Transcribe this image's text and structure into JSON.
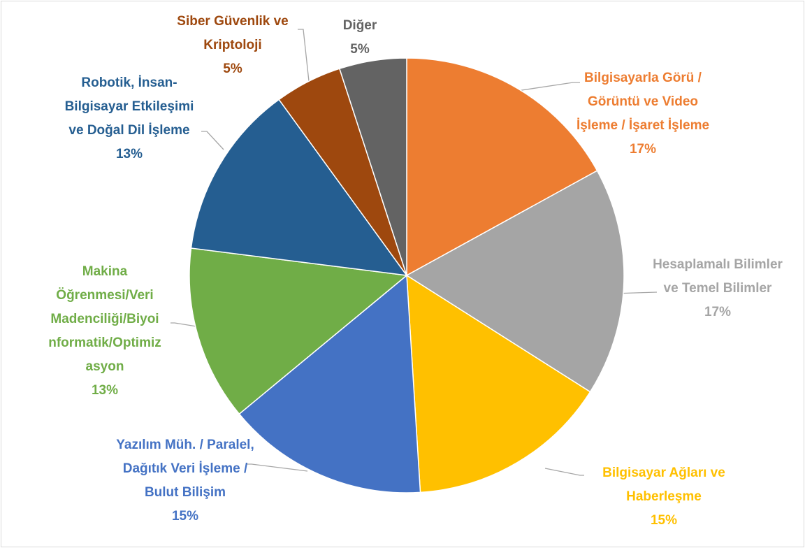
{
  "chart_data": {
    "type": "pie",
    "categories": [
      "Bilgisayarla Görü / Görüntü ve Video İşleme / İşaret İşleme",
      "Hesaplamalı Bilimler ve Temel Bilimler",
      "Bilgisayar Ağları ve Haberleşme",
      "Yazılım Müh. / Paralel, Dağıtık Veri İşleme / Bulut Bilişim",
      "Makina Öğrenmesi/Veri Madenciliği/Biyoinformatik/Optimizasyon",
      "Robotik, İnsan-Bilgisayar Etkileşimi ve Doğal Dil İşleme",
      "Siber Güvenlik ve Kriptoloji",
      "Diğer"
    ],
    "values": [
      17,
      17,
      15,
      15,
      13,
      13,
      5,
      5
    ],
    "value_labels": [
      "17%",
      "17%",
      "15%",
      "15%",
      "13%",
      "13%",
      "5%",
      "5%"
    ],
    "colors": [
      "#ed7d31",
      "#a5a5a5",
      "#ffc000",
      "#4472c4",
      "#70ad47",
      "#255e91",
      "#9e480e",
      "#636363"
    ]
  }
}
